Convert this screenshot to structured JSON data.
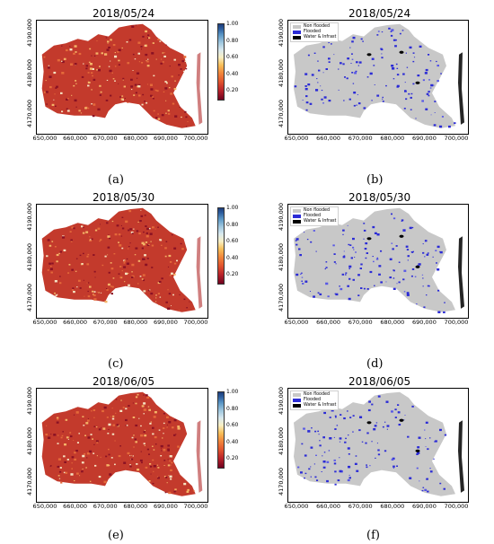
{
  "colors": {
    "flooded": "#2b2bd6",
    "non_flooded": "#c8c8c8",
    "water_infrast": "#000000"
  },
  "xticks": [
    "650,000",
    "660,000",
    "670,000",
    "680,000",
    "690,000",
    "700,000"
  ],
  "yticks": [
    "4170,000",
    "4180,000",
    "4190,000"
  ],
  "colorbar_ticks": [
    "1.00",
    "0.80",
    "0.60",
    "0.40",
    "0.20"
  ],
  "legend": {
    "non_flooded": "Non flooded",
    "flooded": "Flooded",
    "water_infrast": "Water & Infrast"
  },
  "panels": [
    {
      "title": "2018/05/24",
      "caption": "(a)",
      "kind": "index-map"
    },
    {
      "title": "2018/05/24",
      "caption": "(b)",
      "kind": "flood-map"
    },
    {
      "title": "2018/05/30",
      "caption": "(c)",
      "kind": "index-map"
    },
    {
      "title": "2018/05/30",
      "caption": "(d)",
      "kind": "flood-map"
    },
    {
      "title": "2018/06/05",
      "caption": "(e)",
      "kind": "index-map"
    },
    {
      "title": "2018/06/05",
      "caption": "(f)",
      "kind": "flood-map"
    }
  ]
}
